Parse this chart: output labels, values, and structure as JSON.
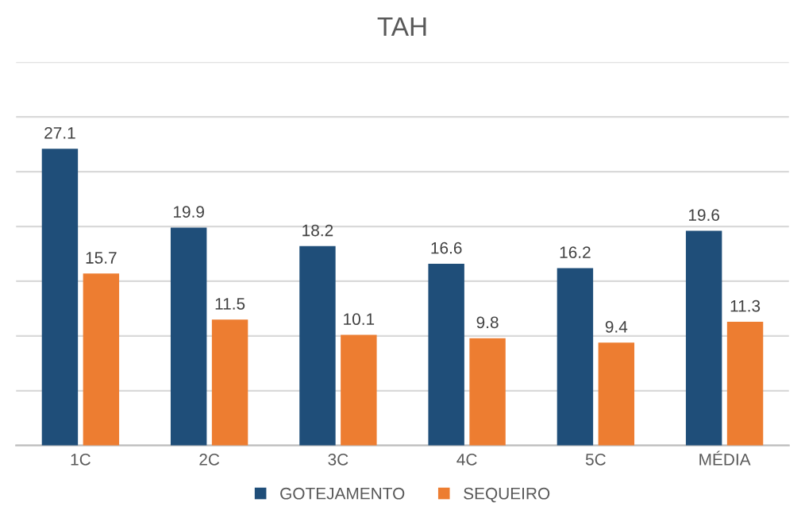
{
  "chart_data": {
    "type": "bar",
    "title": "TAH",
    "categories": [
      "1C",
      "2C",
      "3C",
      "4C",
      "5C",
      "MÉDIA"
    ],
    "series": [
      {
        "name": "GOTEJAMENTO",
        "color": "#1f4e79",
        "values": [
          27.1,
          19.9,
          18.2,
          16.6,
          16.2,
          19.6
        ]
      },
      {
        "name": "SEQUEIRO",
        "color": "#ed7d31",
        "values": [
          15.7,
          11.5,
          10.1,
          9.8,
          9.4,
          11.3
        ]
      }
    ],
    "ylim": [
      0,
      35
    ],
    "yticks": [
      {
        "value": 0,
        "label": null
      },
      {
        "value": 5,
        "label": null
      },
      {
        "value": 10,
        "label": null
      },
      {
        "value": 15,
        "label": null
      },
      {
        "value": 20,
        "label": null
      },
      {
        "value": 25,
        "label": null
      },
      {
        "value": 30,
        "label": null
      },
      {
        "value": 35,
        "label": null
      }
    ],
    "tick_labels": "x",
    "grid": "y",
    "legend": "bottom",
    "data_labels": true
  }
}
